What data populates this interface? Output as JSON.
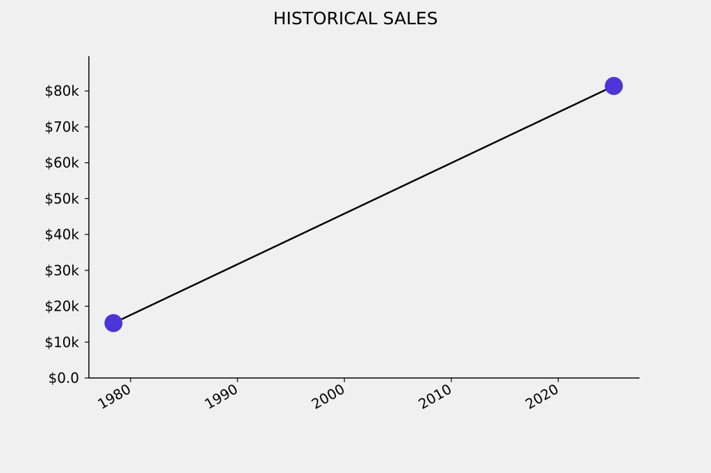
{
  "chart_data": {
    "type": "line",
    "title": "HISTORICAL SALES",
    "x": [
      1978.4,
      2025.2
    ],
    "series": [
      {
        "values": [
          15300,
          81400
        ],
        "color": "#000000",
        "marker_color": "#4b35d9"
      }
    ],
    "xlim": [
      1976.1,
      2027.6
    ],
    "xticks": [
      1980,
      1990,
      2000,
      2010,
      2020
    ],
    "ylim": [
      0,
      89700
    ],
    "yticks": [
      {
        "value": 0,
        "label": "$0.0"
      },
      {
        "value": 10000,
        "label": "$10k"
      },
      {
        "value": 20000,
        "label": "$20k"
      },
      {
        "value": 30000,
        "label": "$30k"
      },
      {
        "value": 40000,
        "label": "$40k"
      },
      {
        "value": 50000,
        "label": "$50k"
      },
      {
        "value": 60000,
        "label": "$60k"
      },
      {
        "value": 70000,
        "label": "$70k"
      },
      {
        "value": 80000,
        "label": "$80k"
      }
    ],
    "grid": false
  }
}
